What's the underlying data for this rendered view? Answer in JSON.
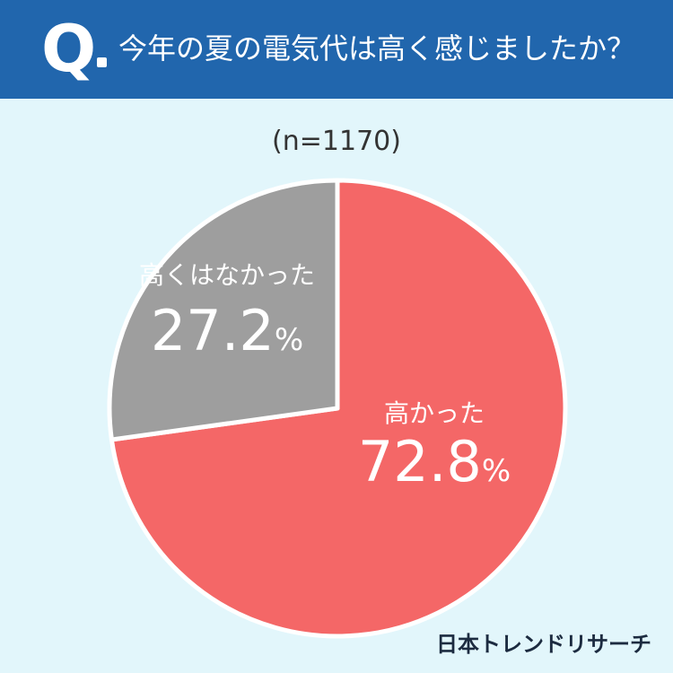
{
  "header": {
    "q_label": "Q",
    "question": "今年の夏の電気代は高く感じましたか？"
  },
  "sample_size": "(n=1170)",
  "brand": "日本トレンドリサーチ",
  "colors": {
    "header_bg": "#2166ad",
    "page_bg": "#e2f6fb",
    "slice_high": "#f46767",
    "slice_not_high": "#9e9e9e"
  },
  "chart_data": {
    "type": "pie",
    "title": "今年の夏の電気代は高く感じましたか？",
    "slices": [
      {
        "label": "高かった",
        "value": 72.8,
        "value_label": "72.8",
        "unit": "%",
        "color": "#f46767"
      },
      {
        "label": "高くはなかった",
        "value": 27.2,
        "value_label": "27.2",
        "unit": "%",
        "color": "#9e9e9e"
      }
    ]
  }
}
